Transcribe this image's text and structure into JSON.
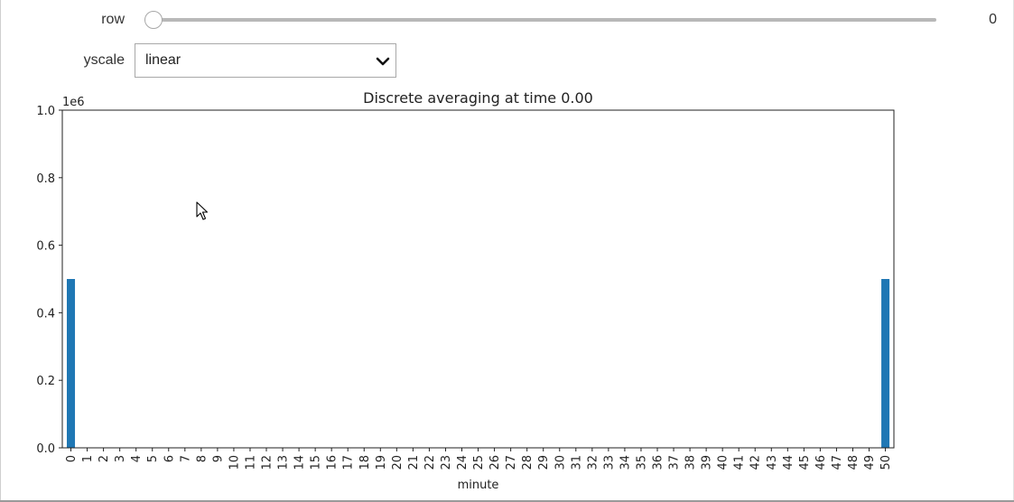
{
  "controls": {
    "row": {
      "label": "row",
      "value": 0,
      "min": 0,
      "max": 1,
      "readout": "0"
    },
    "yscale": {
      "label": "yscale",
      "selected": "linear"
    }
  },
  "icons": {
    "dropdown": "chevron-down-icon",
    "cursor": "mouse-pointer-icon"
  },
  "chart_data": {
    "type": "bar",
    "title": "Discrete averaging at time 0.00",
    "xlabel": "minute",
    "ylabel": "",
    "offset_label": "1e6",
    "categories": [
      "0",
      "1",
      "2",
      "3",
      "4",
      "5",
      "6",
      "7",
      "8",
      "9",
      "10",
      "11",
      "12",
      "13",
      "14",
      "15",
      "16",
      "17",
      "18",
      "19",
      "20",
      "21",
      "22",
      "23",
      "24",
      "25",
      "26",
      "27",
      "28",
      "29",
      "30",
      "31",
      "32",
      "33",
      "34",
      "35",
      "36",
      "37",
      "38",
      "39",
      "40",
      "41",
      "42",
      "43",
      "44",
      "45",
      "46",
      "47",
      "48",
      "49",
      "50"
    ],
    "values": [
      500000,
      0,
      0,
      0,
      0,
      0,
      0,
      0,
      0,
      0,
      0,
      0,
      0,
      0,
      0,
      0,
      0,
      0,
      0,
      0,
      0,
      0,
      0,
      0,
      0,
      0,
      0,
      0,
      0,
      0,
      0,
      0,
      0,
      0,
      0,
      0,
      0,
      0,
      0,
      0,
      0,
      0,
      0,
      0,
      0,
      0,
      0,
      0,
      0,
      0,
      500000
    ],
    "ylim": [
      0,
      1000000
    ],
    "yticks": [
      "0.0",
      "0.2",
      "0.4",
      "0.6",
      "0.8",
      "1.0"
    ],
    "bar_color": "#1f77b4",
    "grid": false,
    "legend": "none"
  }
}
